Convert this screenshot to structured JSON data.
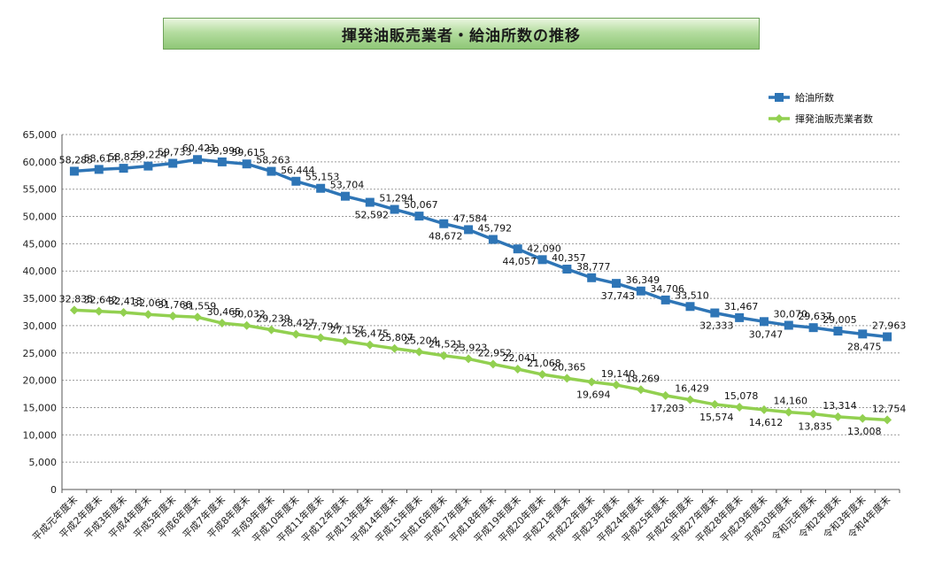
{
  "title": "揮発油販売業者・給油所数の推移",
  "chart_data": {
    "type": "line",
    "title": "揮発油販売業者・給油所数の推移",
    "ylim": [
      0,
      65000
    ],
    "yticks": [
      0,
      5000,
      10000,
      15000,
      20000,
      25000,
      30000,
      35000,
      40000,
      45000,
      50000,
      55000,
      60000,
      65000
    ],
    "ytick_labels": [
      "0",
      "5,000",
      "10,000",
      "15,000",
      "20,000",
      "25,000",
      "30,000",
      "35,000",
      "40,000",
      "45,000",
      "50,000",
      "55,000",
      "60,000",
      "65,000"
    ],
    "grid": "horizontal dotted",
    "legend_position": "top-right",
    "categories": [
      "平成元年度末",
      "平成2年度末",
      "平成3年度末",
      "平成4年度末",
      "平成5年度末",
      "平成6年度末",
      "平成7年度末",
      "平成8年度末",
      "平成9年度末",
      "平成10年度末",
      "平成11年度末",
      "平成12年度末",
      "平成13年度末",
      "平成14年度末",
      "平成15年度末",
      "平成16年度末",
      "平成17年度末",
      "平成18年度末",
      "平成19年度末",
      "平成20年度末",
      "平成21年度末",
      "平成22年度末",
      "平成23年度末",
      "平成24年度末",
      "平成25年度末",
      "平成26年度末",
      "平成27年度末",
      "平成28年度末",
      "平成29年度末",
      "平成30年度末",
      "令和元年度末",
      "令和2年度末",
      "令和3年度末",
      "令和4年度末"
    ],
    "series": [
      {
        "name": "給油所数",
        "color": "#2e75b6",
        "marker": "square",
        "values": [
          58285,
          58614,
          58825,
          59224,
          59733,
          60421,
          59990,
          59615,
          58263,
          56444,
          55153,
          53704,
          52592,
          51294,
          50067,
          48672,
          47584,
          45792,
          44057,
          42090,
          40357,
          38777,
          37743,
          36349,
          34706,
          33510,
          32333,
          31467,
          30747,
          30070,
          29637,
          29005,
          28475,
          27963
        ],
        "labels": [
          "58,285",
          "58,614",
          "58,825",
          "59,224",
          "59,733",
          "60,421",
          "59,990",
          "59,615",
          "58,263",
          "56,444",
          "55,153",
          "53,704",
          "52,592",
          "51,294",
          "50,067",
          "48,672",
          "47,584",
          "45,792",
          "44,057",
          "42,090",
          "40,357",
          "38,777",
          "37,743",
          "36,349",
          "34,706",
          "33,510",
          "32,333",
          "31,467",
          "30,747",
          "30,070",
          "29,637",
          "29,005",
          "28,475",
          "27,963"
        ]
      },
      {
        "name": "揮発油販売業者数",
        "color": "#92d050",
        "marker": "diamond",
        "values": [
          32835,
          32642,
          32413,
          32060,
          31766,
          31559,
          30465,
          30032,
          29239,
          28427,
          27794,
          27157,
          26475,
          25807,
          25204,
          24521,
          23923,
          22952,
          22041,
          21068,
          20365,
          19694,
          19140,
          18269,
          17203,
          16429,
          15574,
          15078,
          14612,
          14160,
          13835,
          13314,
          13008,
          12754
        ],
        "labels": [
          "32,835",
          "32,642",
          "32,413",
          "32,060",
          "31,766",
          "31,559",
          "30,465",
          "30,032",
          "29,239",
          "28,427",
          "27,794",
          "27,157",
          "26,475",
          "25,807",
          "25,204",
          "24,521",
          "23,923",
          "22,952",
          "22,041",
          "21,068",
          "20,365",
          "19,694",
          "19,140",
          "18,269",
          "17,203",
          "16,429",
          "15,574",
          "15,078",
          "14,612",
          "14,160",
          "13,835",
          "13,314",
          "13,008",
          "12,754"
        ]
      }
    ]
  }
}
